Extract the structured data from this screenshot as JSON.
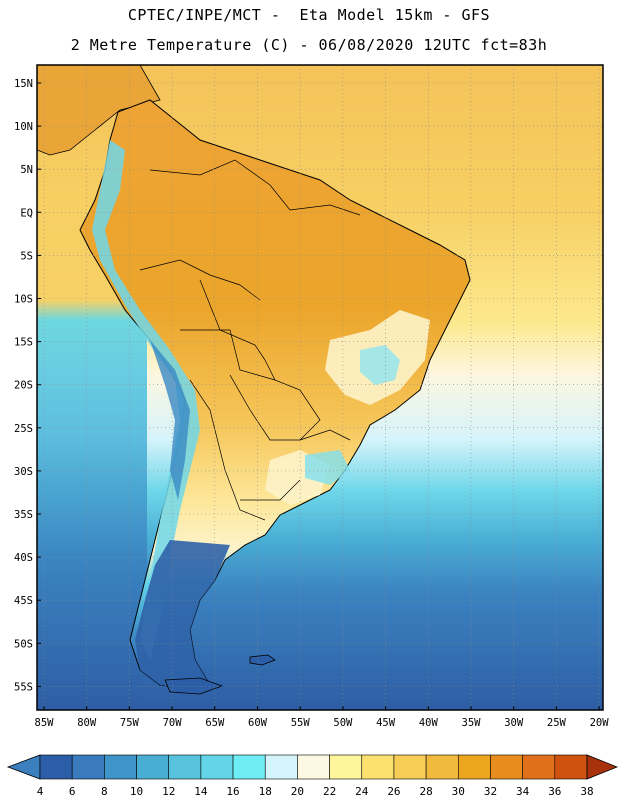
{
  "title": {
    "line1": "CPTEC/INPE/MCT -  Eta Model 15km - GFS",
    "line2": "2 Metre Temperature (C) - 06/08/2020 12UTC fct=83h"
  },
  "map": {
    "region": "South America",
    "lat_labels": [
      "15N",
      "10N",
      "5N",
      "EQ",
      "5S",
      "10S",
      "15S",
      "20S",
      "25S",
      "30S",
      "35S",
      "40S",
      "45S",
      "50S",
      "55S"
    ],
    "lon_labels": [
      "85W",
      "80W",
      "75W",
      "70W",
      "65W",
      "60W",
      "55W",
      "50W",
      "45W",
      "40W",
      "35W",
      "30W",
      "25W",
      "20W"
    ]
  },
  "colorbar": {
    "ticks": [
      "4",
      "6",
      "8",
      "10",
      "12",
      "14",
      "16",
      "18",
      "20",
      "22",
      "24",
      "26",
      "28",
      "30",
      "32",
      "34",
      "36",
      "38"
    ],
    "low_color": "#3b7fbf",
    "high_color": "#a8320c",
    "colors": [
      "#2b5ea6",
      "#3a7bbd",
      "#3f95c7",
      "#4aaed2",
      "#56c2dc",
      "#62d6e8",
      "#6eeef4",
      "#d4f5fb",
      "#fdf8e1",
      "#fff59a",
      "#fde16e",
      "#f7cd55",
      "#f0ba3c",
      "#eba51f",
      "#e88c1e",
      "#e0701a",
      "#d0520f",
      "#b23c0c"
    ]
  }
}
